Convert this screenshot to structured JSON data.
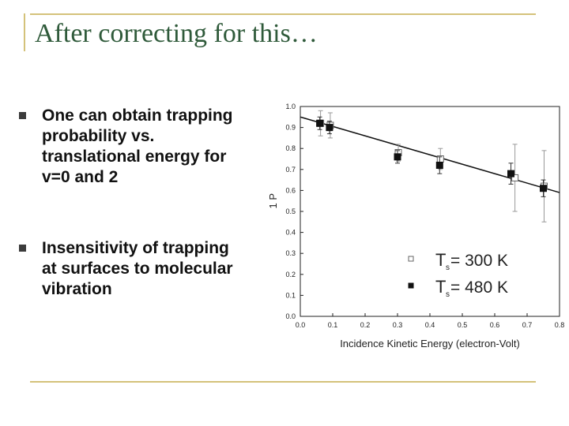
{
  "slide": {
    "title": "After correcting for this…",
    "bullets": [
      "One can obtain trapping probability vs. translational energy for v=0 and 2",
      "Insensitivity of trapping at surfaces to molecular vibration"
    ],
    "colors": {
      "title": "#2f5a3a",
      "rule": "#d4c27a",
      "bullet": "#3c3c3c"
    }
  },
  "chart_data": {
    "type": "scatter",
    "title": "",
    "xlabel": "Incidence Kinetic Energy (electron-Volt)",
    "ylabel": "1 P",
    "xlim": [
      0.0,
      0.8
    ],
    "ylim": [
      0.0,
      1.0
    ],
    "xticks": [
      "0.0",
      "0.1",
      "0.2",
      "0.3",
      "0.4",
      "0.5",
      "0.6",
      "0.7",
      "0.8"
    ],
    "yticks": [
      "0.0",
      "0.1",
      "0.2",
      "0.3",
      "0.4",
      "0.5",
      "0.6",
      "0.7",
      "0.8",
      "0.9",
      "1.0"
    ],
    "grid": false,
    "legend_position": "bottom-right",
    "series": [
      {
        "name": "Ts = 300 K",
        "legend_main": "T",
        "legend_sub": "s",
        "legend_rest": " = 300 K",
        "marker": "open-square",
        "x": [
          0.06,
          0.09,
          0.3,
          0.43,
          0.66,
          0.75
        ],
        "y": [
          0.92,
          0.91,
          0.78,
          0.75,
          0.66,
          0.62
        ],
        "err": [
          0.06,
          0.06,
          0.04,
          0.05,
          0.16,
          0.17
        ]
      },
      {
        "name": "Ts = 480 K",
        "legend_main": "T",
        "legend_sub": "s",
        "legend_rest": " = 480 K",
        "marker": "filled-square",
        "x": [
          0.06,
          0.09,
          0.3,
          0.43,
          0.65,
          0.75
        ],
        "y": [
          0.92,
          0.9,
          0.76,
          0.72,
          0.68,
          0.61
        ],
        "err": [
          0.03,
          0.03,
          0.03,
          0.04,
          0.05,
          0.04
        ]
      }
    ],
    "fit_line": {
      "x": [
        0.0,
        0.8
      ],
      "y": [
        0.95,
        0.59
      ]
    }
  }
}
